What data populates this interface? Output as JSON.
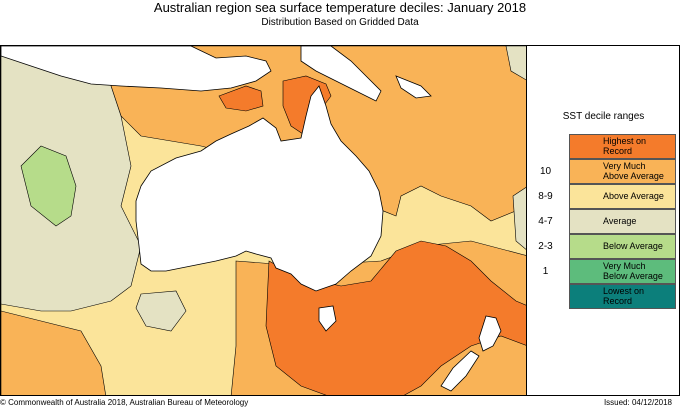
{
  "title": "Australian region sea surface temperature deciles:  January 2018",
  "subtitle": "Distribution Based on Gridded Data",
  "legend": {
    "title": "SST decile ranges",
    "items": [
      {
        "range": "",
        "label_line1": "Highest on",
        "label_line2": "Record",
        "color": "#f47b2b"
      },
      {
        "range": "10",
        "label_line1": "Very Much",
        "label_line2": "Above Average",
        "color": "#f9b357"
      },
      {
        "range": "8-9",
        "label_line1": "Above Average",
        "label_line2": "",
        "color": "#fbe49a"
      },
      {
        "range": "4-7",
        "label_line1": "Average",
        "label_line2": "",
        "color": "#e4e2c3"
      },
      {
        "range": "2-3",
        "label_line1": "Below Average",
        "label_line2": "",
        "color": "#b6dc8a"
      },
      {
        "range": "1",
        "label_line1": "Very Much",
        "label_line2": "Below Average",
        "color": "#5dbc7c"
      },
      {
        "range": "",
        "label_line1": "Lowest on",
        "label_line2": "Record",
        "color": "#0c7f7b"
      }
    ]
  },
  "map_colors": {
    "land": "#ffffff",
    "highest": "#f47b2b",
    "very_much_above": "#f9b357",
    "above": "#fbe49a",
    "average": "#e4e2c3",
    "below": "#b6dc8a"
  },
  "footer": {
    "copyright": "© Commonwealth of Australia 2018, Australian Bureau of Meteorology",
    "issued": "Issued: 04/12/2018"
  }
}
